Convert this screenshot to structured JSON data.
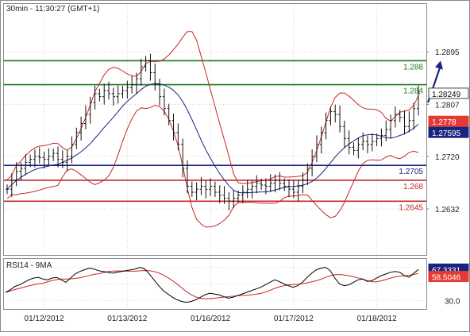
{
  "header": {
    "title": "30min - 11:30:27 (GMT+1)"
  },
  "chart_data": [
    {
      "type": "candlestick",
      "panel": "price",
      "price_axis": {
        "ticks": [
          1.2895,
          1.2807,
          1.272,
          1.2632
        ],
        "tick_labels": [
          "1.2895",
          "1.2807",
          "1.2720",
          "1.2632"
        ],
        "ylim": [
          1.2555,
          1.2975
        ]
      },
      "date_labels": [
        "01/12/2012",
        "01/13/2012",
        "01/16/2012",
        "01/17/2012",
        "01/18/2012"
      ],
      "levels": [
        {
          "value": 1.288,
          "label": "1.288",
          "color": "#1f7a1f"
        },
        {
          "value": 1.284,
          "label": "1.284",
          "color": "#1f7a1f"
        },
        {
          "value": 1.2705,
          "label": "1.2705",
          "color": "#1a237e"
        },
        {
          "value": 1.268,
          "label": "1.268",
          "color": "#c62828"
        },
        {
          "value": 1.2645,
          "label": "1.2645",
          "color": "#c62828"
        }
      ],
      "badges": [
        {
          "value": 1.28249,
          "label": "1.28249",
          "style": "outline"
        },
        {
          "value": 1.2778,
          "label": "1.2778",
          "bg": "#e53935"
        },
        {
          "value": 1.27595,
          "label": "1.27595",
          "bg": "#1a237e"
        }
      ],
      "close_series": [
        1.2665,
        1.268,
        1.2695,
        1.27,
        1.271,
        1.2715,
        1.272,
        1.2718,
        1.2715,
        1.272,
        1.2725,
        1.2715,
        1.271,
        1.272,
        1.274,
        1.276,
        1.2775,
        1.279,
        1.281,
        1.2825,
        1.282,
        1.283,
        1.2825,
        1.282,
        1.2825,
        1.283,
        1.2835,
        1.284,
        1.285,
        1.287,
        1.288,
        1.286,
        1.284,
        1.282,
        1.28,
        1.278,
        1.276,
        1.274,
        1.27,
        1.267,
        1.266,
        1.2665,
        1.267,
        1.2665,
        1.267,
        1.266,
        1.2655,
        1.265,
        1.2645,
        1.265,
        1.2655,
        1.266,
        1.2665,
        1.267,
        1.2675,
        1.2672,
        1.267,
        1.2675,
        1.268,
        1.2675,
        1.267,
        1.2665,
        1.266,
        1.267,
        1.268,
        1.27,
        1.272,
        1.274,
        1.276,
        1.278,
        1.2795,
        1.279,
        1.277,
        1.275,
        1.2735,
        1.273,
        1.274,
        1.2745,
        1.274,
        1.2745,
        1.275,
        1.2755,
        1.2765,
        1.278,
        1.279,
        1.2785,
        1.277,
        1.278,
        1.28,
        1.2825
      ],
      "bollinger": {
        "upper": "red",
        "middle": "navy",
        "lower": "red"
      },
      "trend_arrow": {
        "from_value": 1.281,
        "to_value": 1.288,
        "color": "#1a237e"
      }
    },
    {
      "type": "line",
      "panel": "rsi",
      "title": "RSI14 - 9MA",
      "series": [
        {
          "name": "RSI14",
          "color": "#000000"
        },
        {
          "name": "9MA",
          "color": "#c62828"
        }
      ],
      "rsi_values": [
        40,
        43,
        47,
        49,
        52,
        55,
        57,
        58,
        56,
        55,
        57,
        58,
        55,
        52,
        57,
        62,
        65,
        67,
        69,
        68,
        66,
        65,
        64,
        63,
        64,
        65,
        66,
        67,
        68,
        70,
        68,
        62,
        55,
        48,
        42,
        38,
        34,
        31,
        29,
        28,
        29,
        31,
        34,
        37,
        39,
        38,
        37,
        35,
        33,
        34,
        36,
        38,
        40,
        42,
        44,
        46,
        49,
        52,
        55,
        53,
        50,
        48,
        46,
        48,
        52,
        58,
        63,
        67,
        69,
        70,
        66,
        57,
        50,
        48,
        49,
        52,
        55,
        56,
        53,
        54,
        57,
        60,
        62,
        64,
        65,
        64,
        60,
        58,
        63,
        67.3
      ],
      "ylim": [
        20,
        80
      ],
      "badges": [
        {
          "value": 67.3331,
          "label": "67.3331",
          "bg": "#1a237e"
        },
        {
          "value": 58.5046,
          "label": "58.5046",
          "bg": "#e53935"
        }
      ],
      "axis_label": "30.0"
    }
  ]
}
